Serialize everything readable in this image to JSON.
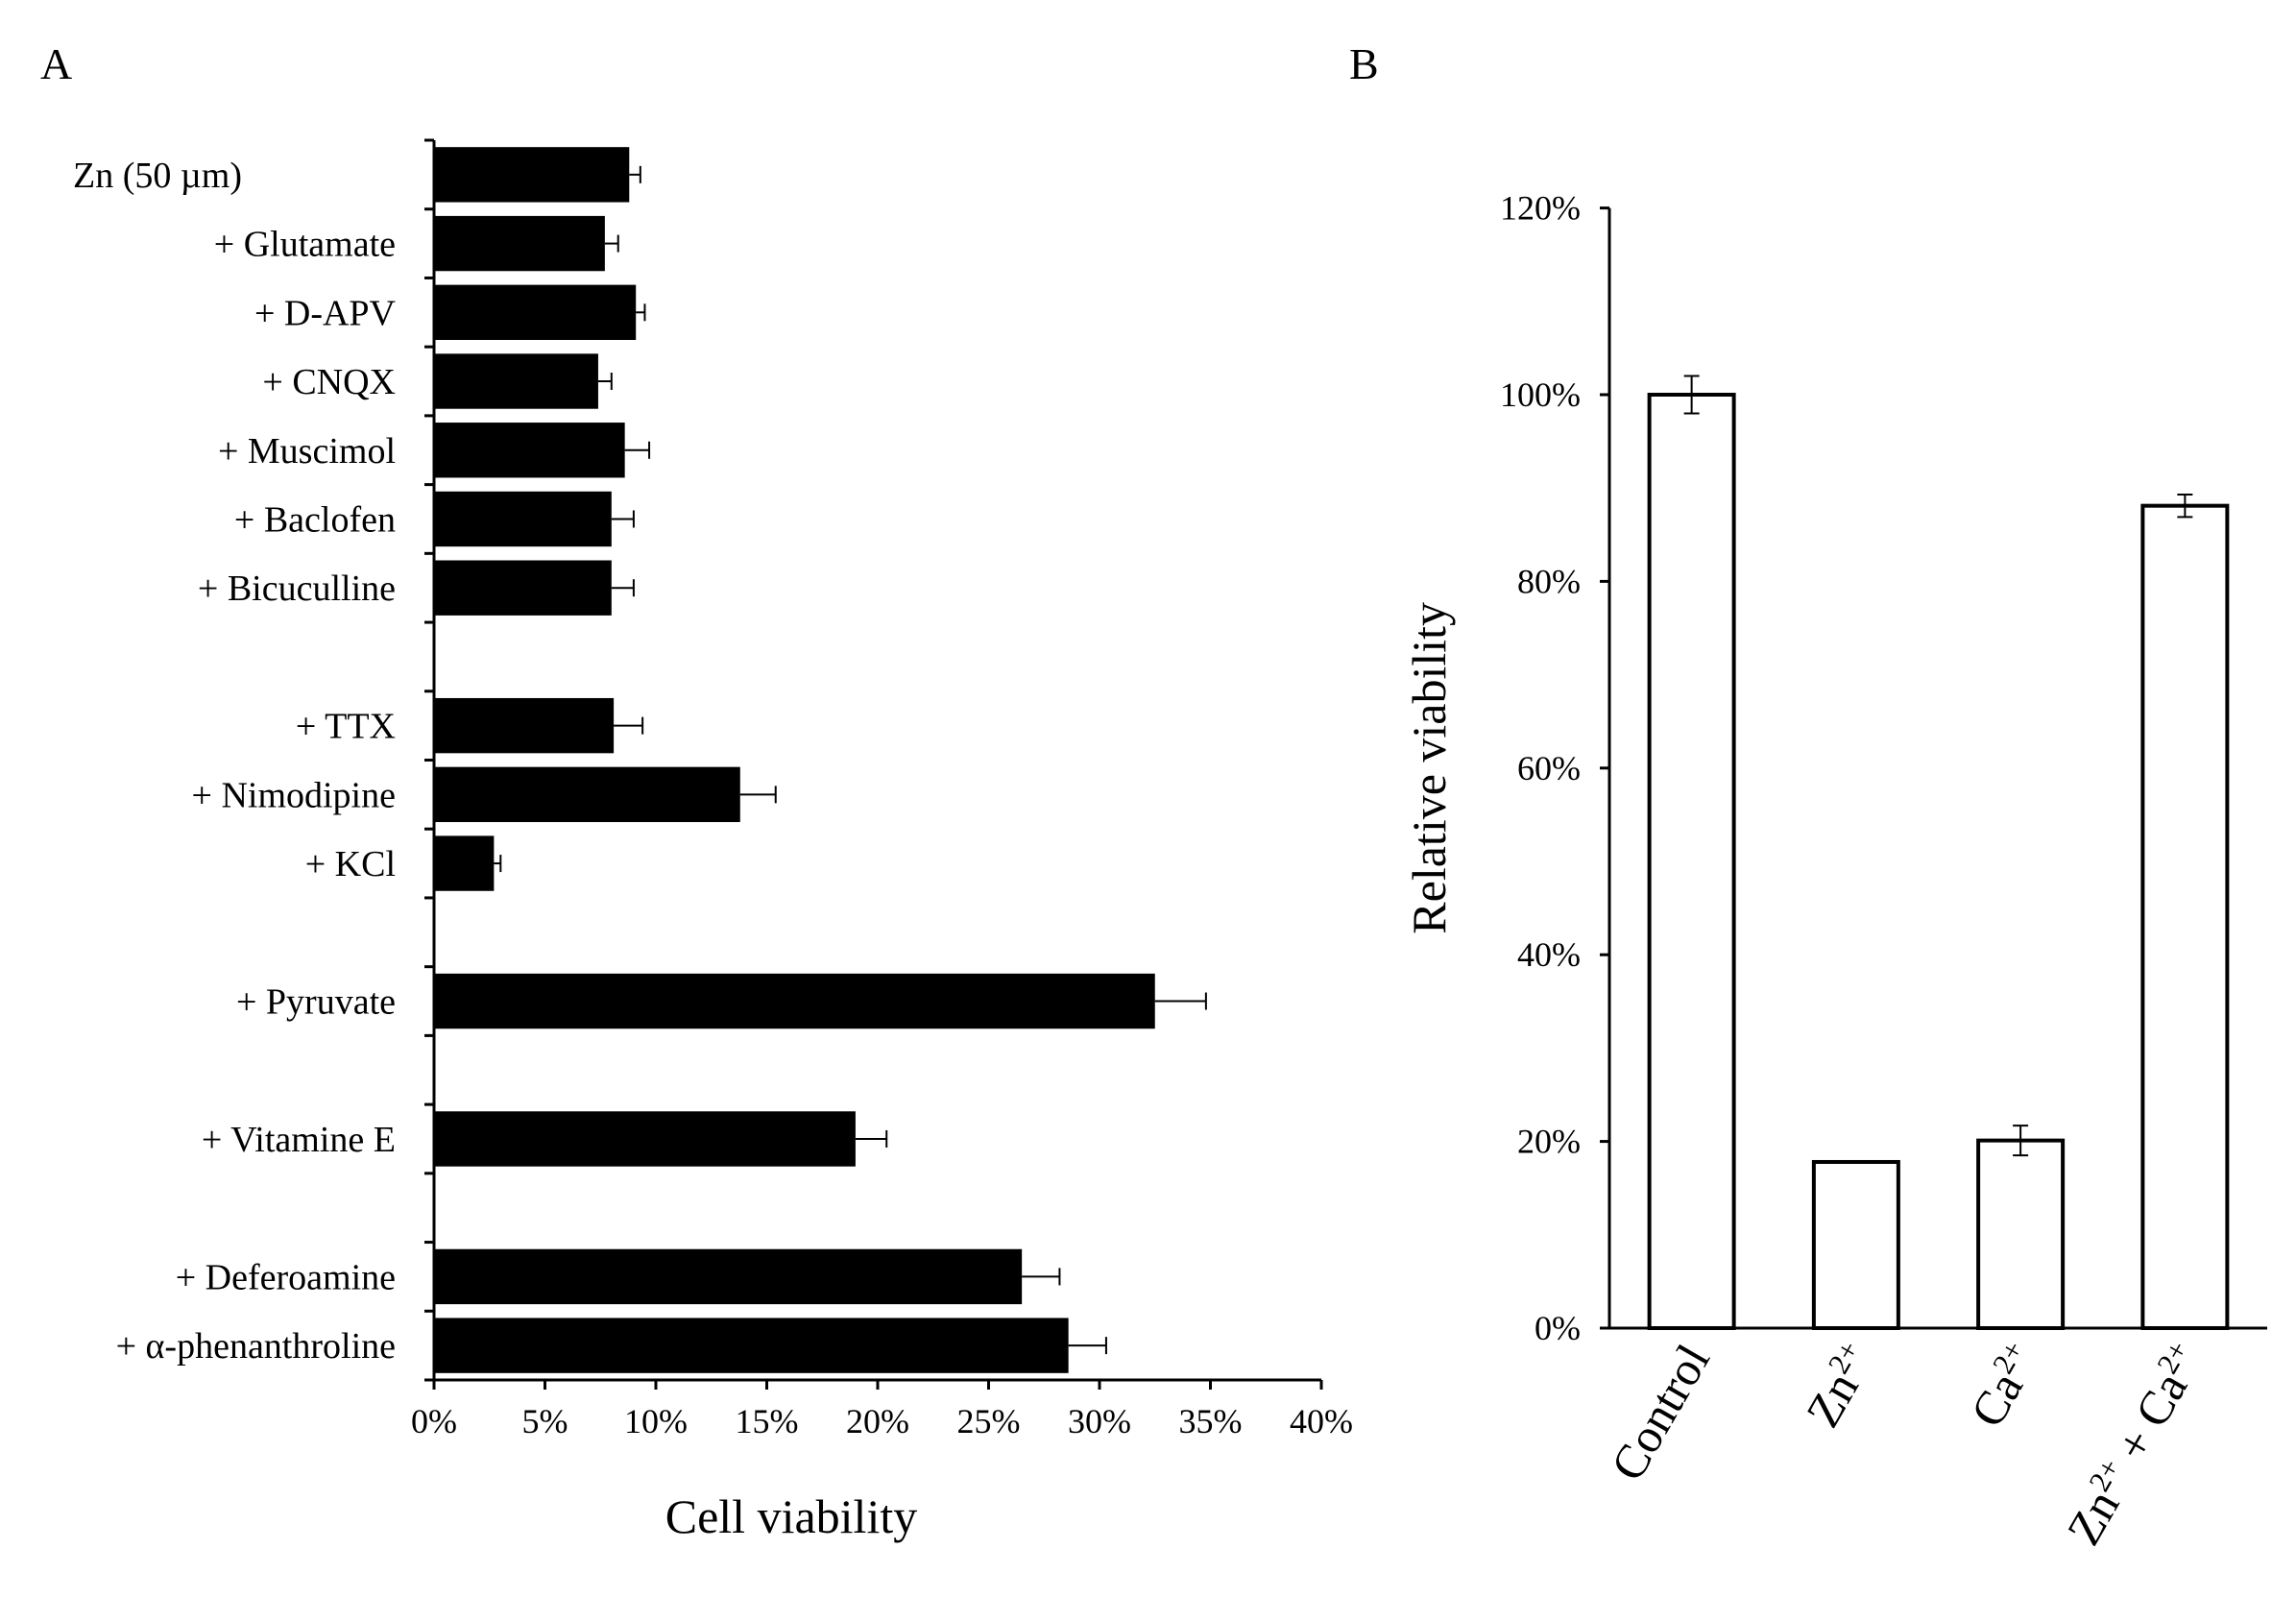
{
  "colors": {
    "ink": "#000000",
    "background": "#ffffff"
  },
  "chart_data": [
    {
      "panel": "A",
      "type": "bar",
      "orientation": "horizontal",
      "title": "",
      "xlabel": "Cell viability",
      "ylabel": "",
      "xlim": [
        0,
        40
      ],
      "xticks": [
        0,
        5,
        10,
        15,
        20,
        25,
        30,
        35,
        40
      ],
      "xtick_labels": [
        "0%",
        "5%",
        "10%",
        "15%",
        "20%",
        "25%",
        "30%",
        "35%",
        "40%"
      ],
      "bar_color": "#000000",
      "categories": [
        "Zn (50 µm)",
        "+ Glutamate",
        "+ D-APV",
        "+ CNQX",
        "+ Muscimol",
        "+ Baclofen",
        "+ Bicuculline",
        "",
        "+ TTX",
        "+ Nimodipine",
        "+ KCl",
        "",
        "+ Pyruvate",
        "",
        "+ Vitamine E",
        "",
        "+ Deferoamine",
        "+ α-phenanthroline"
      ],
      "values": [
        8.8,
        7.7,
        9.1,
        7.4,
        8.6,
        8.0,
        8.0,
        null,
        8.1,
        13.8,
        2.7,
        null,
        32.5,
        null,
        19.0,
        null,
        26.5,
        28.6
      ],
      "errors": [
        0.5,
        0.6,
        0.4,
        0.6,
        1.1,
        1.0,
        1.0,
        null,
        1.3,
        1.6,
        0.3,
        null,
        2.3,
        null,
        1.4,
        null,
        1.7,
        1.7
      ]
    },
    {
      "panel": "B",
      "type": "bar",
      "orientation": "vertical",
      "title": "",
      "xlabel": "",
      "ylabel": "Relative viability",
      "ylim": [
        0,
        120
      ],
      "yticks": [
        0,
        20,
        40,
        60,
        80,
        100,
        120
      ],
      "ytick_labels": [
        "0%",
        "20%",
        "40%",
        "60%",
        "80%",
        "100%",
        "120%"
      ],
      "bar_fill": "#ffffff",
      "bar_stroke": "#000000",
      "categories": [
        {
          "parts": [
            [
              "Control",
              ""
            ]
          ]
        },
        {
          "parts": [
            [
              "Zn",
              "2+"
            ]
          ]
        },
        {
          "parts": [
            [
              "Ca",
              "2+"
            ]
          ]
        },
        {
          "parts": [
            [
              "Zn",
              "2+"
            ],
            [
              " + Ca",
              "2+"
            ]
          ]
        }
      ],
      "values": [
        100,
        17.8,
        20.1,
        88.1
      ],
      "errors": [
        2.0,
        0,
        1.6,
        1.2
      ]
    }
  ]
}
